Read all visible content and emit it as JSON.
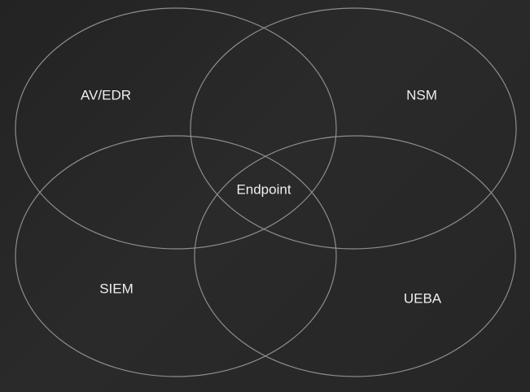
{
  "diagram": {
    "type": "venn",
    "sets": [
      {
        "label": "AV/EDR"
      },
      {
        "label": "NSM"
      },
      {
        "label": "SIEM"
      },
      {
        "label": "UEBA"
      }
    ],
    "center_label": "Endpoint",
    "colors": {
      "background": "#262626",
      "outline": "#8d8d8d",
      "text": "#eeeeee"
    }
  }
}
